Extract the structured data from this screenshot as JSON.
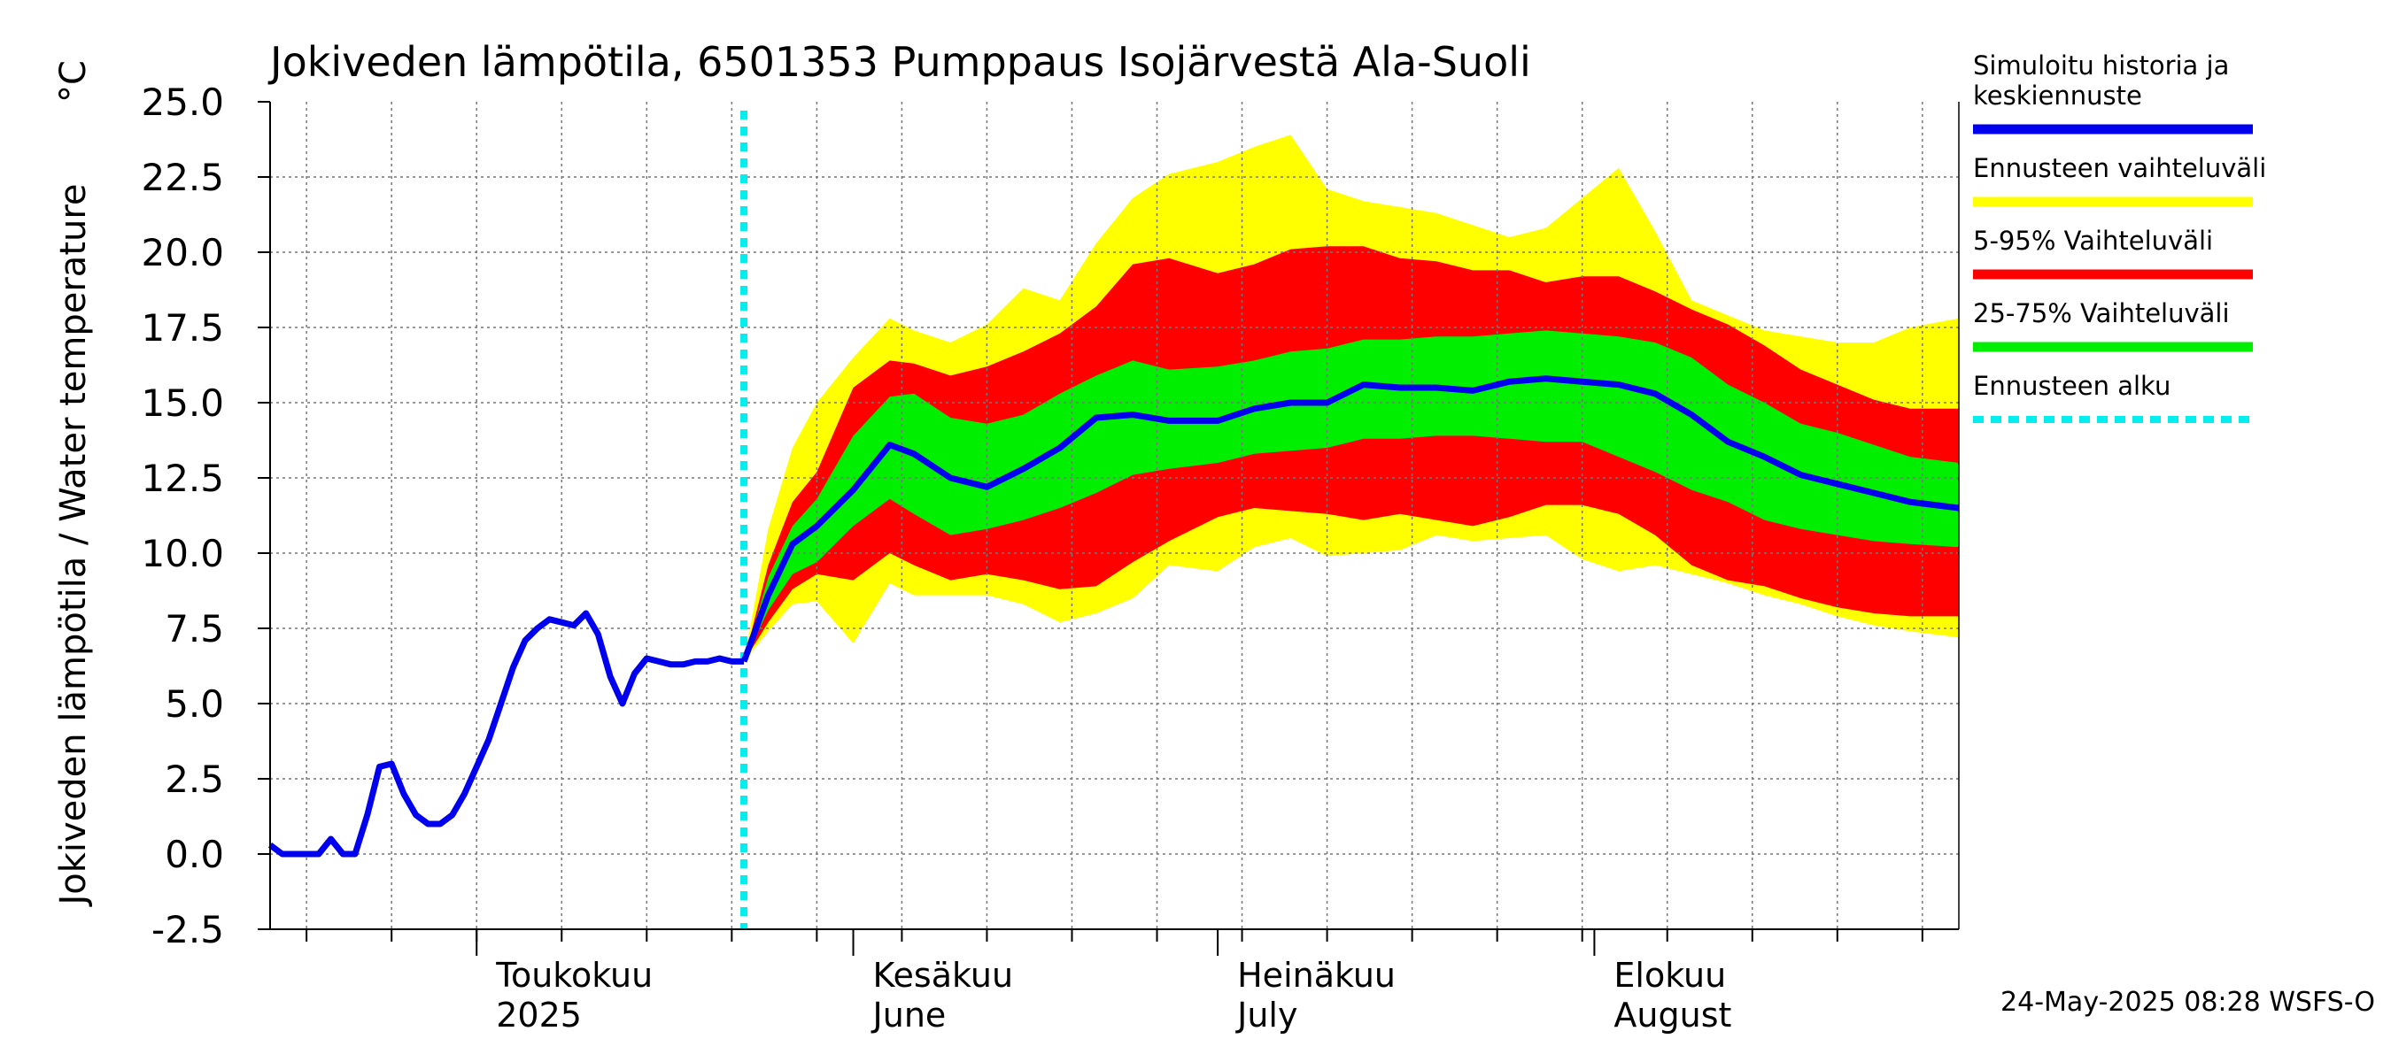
{
  "chart_data": {
    "type": "area",
    "title": "Jokiveden lämpötila, 6501353 Pumppaus Isojärvestä Ala-Suoli",
    "ylabel": "Jokiveden lämpötila / Water temperature",
    "yunit": "°C",
    "ylim": [
      -2.5,
      25.0
    ],
    "yticks": [
      "25.0",
      "22.5",
      "20.0",
      "17.5",
      "15.0",
      "12.5",
      "10.0",
      "7.5",
      "5.0",
      "2.5",
      "0.0",
      "-2.5"
    ],
    "xlim": [
      "2025-04-14",
      "2025-08-31"
    ],
    "month_labels": [
      {
        "date": "2025-05-01",
        "label": "Toukokuu",
        "sub": "2025"
      },
      {
        "date": "2025-06-01",
        "label": "Kesäkuu",
        "sub": "June"
      },
      {
        "date": "2025-07-01",
        "label": "Heinäkuu",
        "sub": "July"
      },
      {
        "date": "2025-08-01",
        "label": "Elokuu",
        "sub": "August"
      }
    ],
    "forecast_start": "2025-05-23",
    "grid": true,
    "legend_placement": "right",
    "colors": {
      "history": "#0000ee",
      "range_full": "#ffff00",
      "range_5_95": "#ff0000",
      "range_25_75": "#00ee00",
      "forecast_start": "#00eeee"
    },
    "legend": [
      {
        "key": "history",
        "label_lines": [
          "Simuloitu historia ja",
          "keskiennuste"
        ],
        "style": "solid"
      },
      {
        "key": "range_full",
        "label_lines": [
          "Ennusteen vaihteluväli"
        ],
        "style": "solid"
      },
      {
        "key": "range_5_95",
        "label_lines": [
          "5-95% Vaihteluväli"
        ],
        "style": "solid"
      },
      {
        "key": "range_25_75",
        "label_lines": [
          "25-75% Vaihteluväli"
        ],
        "style": "solid"
      },
      {
        "key": "forecast_start",
        "label_lines": [
          "Ennusteen alku"
        ],
        "style": "dotted"
      }
    ],
    "history": {
      "x": [
        "2025-04-14",
        "2025-04-15",
        "2025-04-17",
        "2025-04-18",
        "2025-04-19",
        "2025-04-20",
        "2025-04-21",
        "2025-04-22",
        "2025-04-23",
        "2025-04-24",
        "2025-04-25",
        "2025-04-26",
        "2025-04-27",
        "2025-04-28",
        "2025-04-29",
        "2025-04-30",
        "2025-05-01",
        "2025-05-02",
        "2025-05-03",
        "2025-05-04",
        "2025-05-05",
        "2025-05-06",
        "2025-05-07",
        "2025-05-08",
        "2025-05-09",
        "2025-05-10",
        "2025-05-11",
        "2025-05-12",
        "2025-05-13",
        "2025-05-14",
        "2025-05-15",
        "2025-05-16",
        "2025-05-17",
        "2025-05-18",
        "2025-05-19",
        "2025-05-20",
        "2025-05-21",
        "2025-05-22",
        "2025-05-23"
      ],
      "values": [
        0.3,
        0.0,
        0.0,
        0.0,
        0.5,
        0.0,
        0.0,
        1.3,
        2.9,
        3.0,
        2.0,
        1.3,
        1.0,
        1.0,
        1.3,
        2.0,
        2.9,
        3.8,
        5.0,
        6.2,
        7.1,
        7.5,
        7.8,
        7.7,
        7.6,
        8.0,
        7.3,
        5.9,
        5.0,
        6.0,
        6.5,
        6.4,
        6.3,
        6.3,
        6.4,
        6.4,
        6.5,
        6.4,
        6.4
      ]
    },
    "forecast": {
      "x": [
        "2025-05-23",
        "2025-05-25",
        "2025-05-27",
        "2025-05-29",
        "2025-06-01",
        "2025-06-04",
        "2025-06-06",
        "2025-06-09",
        "2025-06-12",
        "2025-06-15",
        "2025-06-18",
        "2025-06-21",
        "2025-06-24",
        "2025-06-27",
        "2025-07-01",
        "2025-07-04",
        "2025-07-07",
        "2025-07-10",
        "2025-07-13",
        "2025-07-16",
        "2025-07-19",
        "2025-07-22",
        "2025-07-25",
        "2025-07-28",
        "2025-07-31",
        "2025-08-03",
        "2025-08-06",
        "2025-08-09",
        "2025-08-12",
        "2025-08-15",
        "2025-08-18",
        "2025-08-21",
        "2025-08-24",
        "2025-08-27",
        "2025-08-31"
      ],
      "median": [
        6.4,
        8.6,
        10.3,
        10.9,
        12.1,
        13.6,
        13.3,
        12.5,
        12.2,
        12.8,
        13.5,
        14.5,
        14.6,
        14.4,
        14.4,
        14.8,
        15.0,
        15.0,
        15.6,
        15.5,
        15.5,
        15.4,
        15.7,
        15.8,
        15.7,
        15.6,
        15.3,
        14.6,
        13.7,
        13.2,
        12.6,
        12.3,
        12.0,
        11.7,
        11.5
      ],
      "p25": [
        6.4,
        8.1,
        9.3,
        9.7,
        10.9,
        11.8,
        11.3,
        10.6,
        10.8,
        11.1,
        11.5,
        12.0,
        12.6,
        12.8,
        13.0,
        13.3,
        13.4,
        13.5,
        13.8,
        13.8,
        13.9,
        13.9,
        13.8,
        13.7,
        13.7,
        13.2,
        12.7,
        12.1,
        11.7,
        11.1,
        10.8,
        10.6,
        10.4,
        10.3,
        10.2
      ],
      "p75": [
        6.4,
        9.2,
        10.9,
        11.8,
        13.9,
        15.2,
        15.3,
        14.5,
        14.3,
        14.6,
        15.3,
        15.9,
        16.4,
        16.1,
        16.2,
        16.4,
        16.7,
        16.8,
        17.1,
        17.1,
        17.2,
        17.2,
        17.3,
        17.4,
        17.3,
        17.2,
        17.0,
        16.5,
        15.6,
        15.0,
        14.3,
        14.0,
        13.6,
        13.2,
        13.0
      ],
      "p5": [
        6.4,
        7.7,
        8.8,
        9.3,
        9.1,
        10.0,
        9.6,
        9.1,
        9.3,
        9.1,
        8.8,
        8.9,
        9.7,
        10.4,
        11.2,
        11.5,
        11.4,
        11.3,
        11.1,
        11.3,
        11.1,
        10.9,
        11.2,
        11.6,
        11.6,
        11.3,
        10.6,
        9.6,
        9.1,
        8.9,
        8.5,
        8.2,
        8.0,
        7.9,
        7.9
      ],
      "p95": [
        6.4,
        9.6,
        11.7,
        12.7,
        15.5,
        16.4,
        16.3,
        15.9,
        16.2,
        16.7,
        17.3,
        18.2,
        19.6,
        19.8,
        19.3,
        19.6,
        20.1,
        20.2,
        20.2,
        19.8,
        19.7,
        19.4,
        19.4,
        19.0,
        19.2,
        19.2,
        18.7,
        18.1,
        17.6,
        16.9,
        16.1,
        15.6,
        15.1,
        14.8,
        14.8
      ],
      "min": [
        6.4,
        7.4,
        8.3,
        8.4,
        7.0,
        9.0,
        8.6,
        8.6,
        8.6,
        8.3,
        7.7,
        8.0,
        8.5,
        9.6,
        9.4,
        10.2,
        10.5,
        9.9,
        10.0,
        10.1,
        10.6,
        10.4,
        10.5,
        10.6,
        9.8,
        9.4,
        9.6,
        9.3,
        9.0,
        8.6,
        8.3,
        7.9,
        7.6,
        7.4,
        7.2
      ],
      "max": [
        6.4,
        10.8,
        13.5,
        15.0,
        16.5,
        17.8,
        17.4,
        17.0,
        17.6,
        18.8,
        18.4,
        20.3,
        21.8,
        22.6,
        23.0,
        23.5,
        23.9,
        22.1,
        21.7,
        21.5,
        21.3,
        20.9,
        20.5,
        20.8,
        21.8,
        22.8,
        20.7,
        18.4,
        17.9,
        17.4,
        17.2,
        17.0,
        17.0,
        17.5,
        17.8
      ]
    }
  },
  "footer": "24-May-2025 08:28 WSFS-O"
}
